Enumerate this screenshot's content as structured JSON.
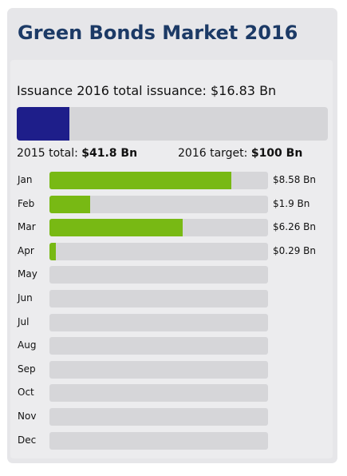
{
  "title": "Green Bonds Market 2016",
  "issuance_label": "Issuance 2016 total issuance: $16.83 Bn",
  "prev_total_label": "2015 total:",
  "prev_total_value": "$41.8 Bn",
  "target_label": "2016 target:",
  "target_value": "$100 Bn",
  "colors": {
    "title": "#1c3a66",
    "total_bar": "#1e1e8a",
    "month_bar": "#78b914",
    "track": "#d6d6d9"
  },
  "chart_data": [
    {
      "type": "bar",
      "orientation": "horizontal",
      "categories": [
        "2016 total issuance"
      ],
      "values": [
        16.83
      ],
      "xlim": [
        0,
        100
      ]
    },
    {
      "type": "bar",
      "orientation": "horizontal",
      "categories": [
        "Jan",
        "Feb",
        "Mar",
        "Apr",
        "May",
        "Jun",
        "Jul",
        "Aug",
        "Sep",
        "Oct",
        "Nov",
        "Dec"
      ],
      "values": [
        8.58,
        1.9,
        6.26,
        0.29,
        null,
        null,
        null,
        null,
        null,
        null,
        null,
        null
      ],
      "value_labels": [
        "$8.58 Bn",
        "$1.9 Bn",
        "$6.26 Bn",
        "$0.29 Bn",
        "",
        "",
        "",
        "",
        "",
        "",
        "",
        ""
      ],
      "xlim": [
        0,
        10.3
      ]
    }
  ]
}
